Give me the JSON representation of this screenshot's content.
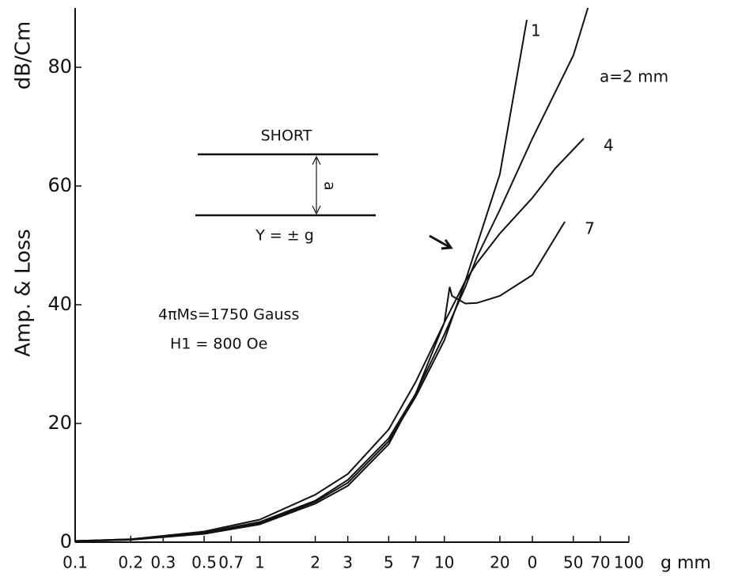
{
  "chart_data": {
    "type": "line",
    "y_label": "Amp. & Loss",
    "y_unit": "dB/Cm",
    "x_label": "g mm",
    "x_scale": "log",
    "xlim": [
      0.1,
      100
    ],
    "ylim": [
      0,
      90
    ],
    "xticks": [
      0.1,
      0.2,
      0.3,
      0.5,
      0.7,
      1,
      2,
      3,
      5,
      7,
      10,
      20,
      {
        "value": 30,
        "label": "0"
      },
      50,
      70,
      100
    ],
    "yticks": [
      0,
      20,
      40,
      60,
      80
    ],
    "annotations": {
      "short": "SHORT",
      "gap": "a",
      "position": "Y = ± g",
      "magnetization": "4πMs=1750 Gauss",
      "field": "H1 = 800 Oe"
    },
    "series": [
      {
        "name": "1",
        "color": "#111111",
        "x": [
          0.1,
          0.2,
          0.5,
          1,
          2,
          3,
          5,
          7,
          10,
          13,
          15,
          20,
          28
        ],
        "values": [
          0.2,
          0.5,
          1.8,
          3.8,
          8,
          11.5,
          19,
          27,
          37,
          44,
          50,
          62,
          88
        ]
      },
      {
        "name": "a=2 mm",
        "color": "#111111",
        "x": [
          0.1,
          0.2,
          0.5,
          1,
          2,
          3,
          5,
          7,
          10,
          13,
          15,
          20,
          30,
          50,
          60
        ],
        "values": [
          0.2,
          0.5,
          1.6,
          3.4,
          7,
          10.5,
          17.5,
          25,
          35,
          43,
          48,
          56,
          68,
          82,
          90
        ]
      },
      {
        "name": "4",
        "color": "#111111",
        "x": [
          0.1,
          0.2,
          0.5,
          1,
          2,
          3,
          5,
          7,
          10,
          13,
          15,
          20,
          30,
          40,
          57
        ],
        "values": [
          0.2,
          0.4,
          1.5,
          3.2,
          6.8,
          10,
          17,
          24.5,
          34,
          44,
          47,
          52,
          58,
          63,
          68
        ]
      },
      {
        "name": "7",
        "color": "#111111",
        "x": [
          0.1,
          0.2,
          0.5,
          1,
          2,
          3,
          5,
          7,
          10,
          10.7,
          11,
          13,
          15,
          20,
          30,
          45
        ],
        "values": [
          0.2,
          0.4,
          1.4,
          3,
          6.5,
          9.5,
          16.5,
          25,
          37,
          43,
          41.5,
          40.2,
          40.3,
          41.5,
          45,
          54
        ]
      }
    ]
  }
}
